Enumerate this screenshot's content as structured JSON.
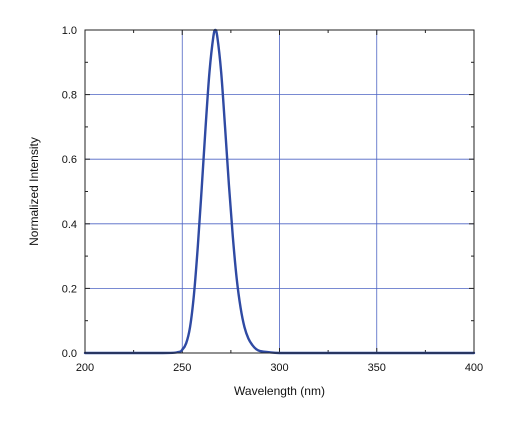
{
  "chart_data": {
    "type": "line",
    "title": "",
    "xlabel": "Wavelength (nm)",
    "ylabel": "Normalized Intensity",
    "xlim": [
      200,
      400
    ],
    "ylim": [
      0,
      1.0
    ],
    "x_ticks": [
      200,
      250,
      300,
      350,
      400
    ],
    "y_ticks": [
      0.0,
      0.2,
      0.4,
      0.6,
      0.8,
      1.0
    ],
    "x_tick_labels": [
      "200",
      "250",
      "300",
      "350",
      "400"
    ],
    "y_tick_labels": [
      "0.0",
      "0.2",
      "0.4",
      "0.6",
      "0.8",
      "1.0"
    ],
    "grid": true,
    "legend": "none",
    "colors": {
      "line": "#2f4aa3",
      "grid": "#4d63c4",
      "axis": "#222222"
    },
    "series": [
      {
        "x": [
          200,
          240,
          248,
          250,
          252,
          254,
          256,
          258,
          260,
          262,
          264,
          266,
          267,
          268,
          270,
          272,
          274,
          276,
          278,
          280,
          282,
          284,
          286,
          288,
          290,
          295,
          300,
          310,
          320,
          330,
          340,
          350,
          360,
          370,
          380,
          390,
          400
        ],
        "y": [
          0.0,
          0.0,
          0.003,
          0.01,
          0.03,
          0.08,
          0.18,
          0.33,
          0.51,
          0.7,
          0.87,
          0.98,
          1.0,
          0.98,
          0.87,
          0.7,
          0.52,
          0.36,
          0.23,
          0.14,
          0.08,
          0.045,
          0.025,
          0.012,
          0.006,
          0.002,
          0.0,
          0.0,
          0.0,
          0.0,
          0.0,
          0.0,
          0.0,
          0.0,
          0.0,
          0.0,
          0.0
        ]
      }
    ]
  }
}
